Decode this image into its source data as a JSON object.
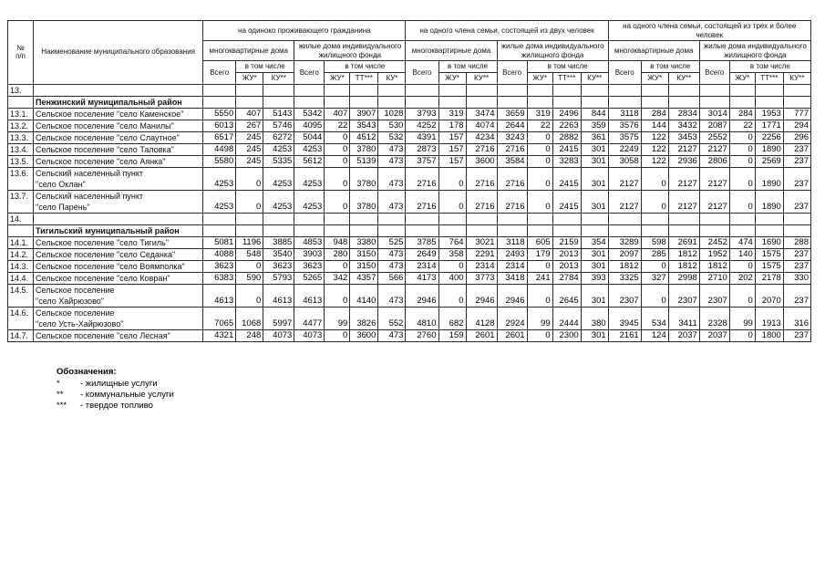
{
  "table": {
    "header": {
      "num": "№\nп/п",
      "name": "Наименование муниципального образования",
      "groups": [
        {
          "label": "на одиноко проживающего гражданина",
          "mkd": "многоквартирные дома",
          "ind": "жилые дома индивидуального жилищного фонда",
          "vsego": "Всего",
          "vtch": "в том числе",
          "cols_mkd": [
            "ЖУ*",
            "КУ**"
          ],
          "cols_ind": [
            "ЖУ*",
            "ТТ***",
            "КУ*"
          ]
        },
        {
          "label": "на одного члена семьи, состоящей из двух человек",
          "mkd": "многоквартирные дома",
          "ind": "жилые дома индивидуального жилищного фонда",
          "vsego": "Всего",
          "vtch": "в том числе",
          "cols_mkd": [
            "ЖУ*",
            "КУ**"
          ],
          "cols_ind": [
            "ЖУ*",
            "ТТ***",
            "КУ**"
          ]
        },
        {
          "label": "на одного члена семьи, состоящей из трех и более человек",
          "mkd": "многоквартирные дома",
          "ind": "жилые дома индивидуального жилищного фонда",
          "vsego": "Всего",
          "vtch": "в том числе",
          "cols_mkd": [
            "ЖУ*",
            "КУ**"
          ],
          "cols_ind": [
            "ЖУ*",
            "ТТ***",
            "КУ**"
          ]
        }
      ]
    },
    "rows": [
      {
        "type": "section-num",
        "num": "13.",
        "name": "",
        "values": [
          "",
          "",
          "",
          "",
          "",
          "",
          "",
          "",
          "",
          "",
          "",
          "",
          "",
          "",
          "",
          "",
          "",
          "",
          "",
          "",
          ""
        ]
      },
      {
        "type": "section-title",
        "num": "",
        "name": "Пенжинский  муниципальный  район",
        "values": [
          "",
          "",
          "",
          "",
          "",
          "",
          "",
          "",
          "",
          "",
          "",
          "",
          "",
          "",
          "",
          "",
          "",
          "",
          "",
          "",
          ""
        ]
      },
      {
        "type": "data",
        "num": "13.1.",
        "name": "Сельское поселение \"село Каменское\"",
        "values": [
          "5550",
          "407",
          "5143",
          "5342",
          "407",
          "3907",
          "1028",
          "3793",
          "319",
          "3474",
          "3659",
          "319",
          "2496",
          "844",
          "3118",
          "284",
          "2834",
          "3014",
          "284",
          "1953",
          "777"
        ]
      },
      {
        "type": "data",
        "num": "13.2.",
        "name": "Сельское поселение \"село Манилы\"",
        "values": [
          "6013",
          "267",
          "5746",
          "4095",
          "22",
          "3543",
          "530",
          "4252",
          "178",
          "4074",
          "2644",
          "22",
          "2263",
          "359",
          "3576",
          "144",
          "3432",
          "2087",
          "22",
          "1771",
          "294"
        ]
      },
      {
        "type": "data",
        "num": "13.3.",
        "name": "Сельское поселение \"село Слаутное\"",
        "values": [
          "6517",
          "245",
          "6272",
          "5044",
          "0",
          "4512",
          "532",
          "4391",
          "157",
          "4234",
          "3243",
          "0",
          "2882",
          "361",
          "3575",
          "122",
          "3453",
          "2552",
          "0",
          "2256",
          "296"
        ]
      },
      {
        "type": "data",
        "num": "13.4.",
        "name": "Сельское поселение \"село Таловка\"",
        "values": [
          "4498",
          "245",
          "4253",
          "4253",
          "0",
          "3780",
          "473",
          "2873",
          "157",
          "2716",
          "2716",
          "0",
          "2415",
          "301",
          "2249",
          "122",
          "2127",
          "2127",
          "0",
          "1890",
          "237"
        ]
      },
      {
        "type": "data",
        "num": "13.5.",
        "name": "Сельское поселение \"село Аянка\"",
        "values": [
          "5580",
          "245",
          "5335",
          "5612",
          "0",
          "5139",
          "473",
          "3757",
          "157",
          "3600",
          "3584",
          "0",
          "3283",
          "301",
          "3058",
          "122",
          "2936",
          "2806",
          "0",
          "2569",
          "237"
        ]
      },
      {
        "type": "data",
        "num": "13.6.",
        "name": "Сельский населенный пункт\n\"село Оклан\"",
        "values": [
          "4253",
          "0",
          "4253",
          "4253",
          "0",
          "3780",
          "473",
          "2716",
          "0",
          "2716",
          "2716",
          "0",
          "2415",
          "301",
          "2127",
          "0",
          "2127",
          "2127",
          "0",
          "1890",
          "237"
        ]
      },
      {
        "type": "data",
        "num": "13.7.",
        "name": "Сельский населенный пункт\n\"село Парень\"",
        "values": [
          "4253",
          "0",
          "4253",
          "4253",
          "0",
          "3780",
          "473",
          "2716",
          "0",
          "2716",
          "2716",
          "0",
          "2415",
          "301",
          "2127",
          "0",
          "2127",
          "2127",
          "0",
          "1890",
          "237"
        ]
      },
      {
        "type": "section-num",
        "num": "14.",
        "name": "",
        "values": [
          "",
          "",
          "",
          "",
          "",
          "",
          "",
          "",
          "",
          "",
          "",
          "",
          "",
          "",
          "",
          "",
          "",
          "",
          "",
          "",
          ""
        ]
      },
      {
        "type": "section-title",
        "num": "",
        "name": "Тигильский  муниципальный  район",
        "values": [
          "",
          "",
          "",
          "",
          "",
          "",
          "",
          "",
          "",
          "",
          "",
          "",
          "",
          "",
          "",
          "",
          "",
          "",
          "",
          "",
          ""
        ]
      },
      {
        "type": "data",
        "num": "14.1.",
        "name": "Сельское поселение \"село Тигиль\"",
        "values": [
          "5081",
          "1196",
          "3885",
          "4853",
          "948",
          "3380",
          "525",
          "3785",
          "764",
          "3021",
          "3118",
          "605",
          "2159",
          "354",
          "3289",
          "598",
          "2691",
          "2452",
          "474",
          "1690",
          "288"
        ]
      },
      {
        "type": "data",
        "num": "14.2.",
        "name": "Сельское поселение \"село Седанка\"",
        "values": [
          "4088",
          "548",
          "3540",
          "3903",
          "280",
          "3150",
          "473",
          "2649",
          "358",
          "2291",
          "2493",
          "179",
          "2013",
          "301",
          "2097",
          "285",
          "1812",
          "1952",
          "140",
          "1575",
          "237"
        ]
      },
      {
        "type": "data",
        "num": "14.3.",
        "name": "Сельское поселение \"село Воямполка\"",
        "values": [
          "3623",
          "0",
          "3623",
          "3623",
          "0",
          "3150",
          "473",
          "2314",
          "0",
          "2314",
          "2314",
          "0",
          "2013",
          "301",
          "1812",
          "0",
          "1812",
          "1812",
          "0",
          "1575",
          "237"
        ]
      },
      {
        "type": "data",
        "num": "14.4.",
        "name": "Сельское поселение \"село Ковран\"",
        "values": [
          "6383",
          "590",
          "5793",
          "5265",
          "342",
          "4357",
          "566",
          "4173",
          "400",
          "3773",
          "3418",
          "241",
          "2784",
          "393",
          "3325",
          "327",
          "2998",
          "2710",
          "202",
          "2178",
          "330"
        ]
      },
      {
        "type": "data",
        "num": "14.5.",
        "name": "Сельское поселение\n\"село Хайрюзово\"",
        "values": [
          "4613",
          "0",
          "4613",
          "4613",
          "0",
          "4140",
          "473",
          "2946",
          "0",
          "2946",
          "2946",
          "0",
          "2645",
          "301",
          "2307",
          "0",
          "2307",
          "2307",
          "0",
          "2070",
          "237"
        ]
      },
      {
        "type": "data",
        "num": "14.6.",
        "name": "Сельское поселение\n\"село Усть-Хайрюзово\"",
        "values": [
          "7065",
          "1068",
          "5997",
          "4477",
          "99",
          "3826",
          "552",
          "4810",
          "682",
          "4128",
          "2924",
          "99",
          "2444",
          "380",
          "3945",
          "534",
          "3411",
          "2328",
          "99",
          "1913",
          "316"
        ]
      },
      {
        "type": "data",
        "num": "14.7.",
        "name": "Сельское поселение \"село Лесная\"",
        "values": [
          "4321",
          "248",
          "4073",
          "4073",
          "0",
          "3600",
          "473",
          "2760",
          "159",
          "2601",
          "2601",
          "0",
          "2300",
          "301",
          "2161",
          "124",
          "2037",
          "2037",
          "0",
          "1800",
          "237"
        ]
      }
    ]
  },
  "legend": {
    "title": "Обозначения:",
    "items": [
      {
        "sym": "*",
        "text": "-  жилищные  услуги"
      },
      {
        "sym": "**",
        "text": "-  коммунальные  услуги"
      },
      {
        "sym": "***",
        "text": "-  твердое  топливо"
      }
    ]
  }
}
